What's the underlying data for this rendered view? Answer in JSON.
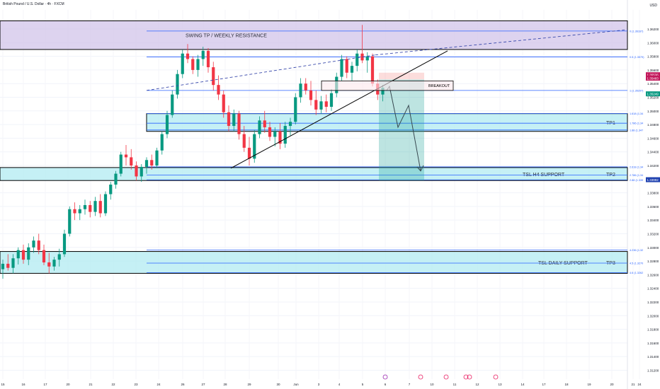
{
  "header": {
    "symbol_title": "British Pound / U.S. Dollar · 4h · FXCM",
    "currency": "USD"
  },
  "chart_data": {
    "type": "candlestick",
    "title": "British Pound / U.S. Dollar · 4h · FXCM",
    "ylim": [
      1.3107,
      1.3648
    ],
    "y_ticks": [
      "1.36200",
      "1.36000",
      "1.35800",
      "1.35600",
      "1.35400",
      "1.35200",
      "1.35000",
      "1.34800",
      "1.34600",
      "1.34400",
      "1.34200",
      "1.34000",
      "1.33800",
      "1.33600",
      "1.33400",
      "1.33200",
      "1.33000",
      "1.32800",
      "1.32600",
      "1.32400",
      "1.32200",
      "1.32000",
      "1.31800",
      "1.31600",
      "1.31400",
      "1.31200"
    ],
    "x_ticks": [
      "15",
      "16",
      "17",
      "20",
      "21",
      "22",
      "23",
      "24",
      "26",
      "27",
      "28",
      "29",
      "30",
      "Jun",
      "3",
      "4",
      "5",
      "6",
      "7",
      "10",
      "11",
      "12",
      "13",
      "14",
      "17",
      "18",
      "19",
      "20",
      "21",
      "24"
    ],
    "price_labels": [
      {
        "text": "1.35536",
        "color": "#c2185b"
      },
      {
        "text": "1.35483",
        "color": "#c2185b"
      },
      {
        "text": "1.35249",
        "color": "#089981"
      },
      {
        "text": "1.33992",
        "color": "#1e40af"
      }
    ],
    "fib_labels": [
      "0 (1.36167)",
      "0.5 (1.3579)",
      "1 (1.35297)",
      "1.618 (1.34",
      "1.786 (1.34",
      "1.88 (1.347",
      "2.618 (1.34",
      "2.786 (1.34",
      "2.88 (1.339",
      "4.236 (1.32",
      "4.5 (1.3270",
      "4.6 (1.3262"
    ],
    "zones": [
      {
        "label": "SWING TP / WEEKLY RESISTANCE",
        "tp": "",
        "color": "#d1c4e9",
        "top": 1.3632,
        "bottom": 1.359
      },
      {
        "label": "",
        "tp": "TP1",
        "color": "#b2ebf2",
        "top": 1.3496,
        "bottom": 1.347
      },
      {
        "label": "TSL H4 SUPPORT",
        "tp": "TP2",
        "color": "#b2ebf2",
        "top": 1.3417,
        "bottom": 1.3398
      },
      {
        "label": "TSL DAILY SUPPORT",
        "tp": "TP3",
        "color": "#b2ebf2",
        "top": 1.3294,
        "bottom": 1.3262
      }
    ],
    "annotations": [
      "BREAKOUT"
    ],
    "candles": [
      [
        1.3268,
        1.3282,
        1.3254,
        1.3276
      ],
      [
        1.3276,
        1.329,
        1.3266,
        1.327
      ],
      [
        1.327,
        1.329,
        1.3262,
        1.3284
      ],
      [
        1.3284,
        1.33,
        1.3275,
        1.3296
      ],
      [
        1.3296,
        1.3304,
        1.3276,
        1.3282
      ],
      [
        1.3282,
        1.3306,
        1.3274,
        1.33
      ],
      [
        1.33,
        1.3316,
        1.3292,
        1.331
      ],
      [
        1.331,
        1.332,
        1.329,
        1.3296
      ],
      [
        1.3296,
        1.3304,
        1.3274,
        1.3278
      ],
      [
        1.3278,
        1.3292,
        1.3262,
        1.3272
      ],
      [
        1.3272,
        1.3286,
        1.3266,
        1.3282
      ],
      [
        1.3282,
        1.3298,
        1.3272,
        1.329
      ],
      [
        1.329,
        1.3326,
        1.3286,
        1.332
      ],
      [
        1.332,
        1.336,
        1.3316,
        1.3356
      ],
      [
        1.3356,
        1.3366,
        1.334,
        1.335
      ],
      [
        1.335,
        1.3362,
        1.334,
        1.3356
      ],
      [
        1.3356,
        1.337,
        1.3348,
        1.3362
      ],
      [
        1.3362,
        1.3368,
        1.3344,
        1.3352
      ],
      [
        1.3352,
        1.3374,
        1.3346,
        1.3368
      ],
      [
        1.3368,
        1.3378,
        1.3344,
        1.335
      ],
      [
        1.335,
        1.3382,
        1.3346,
        1.3378
      ],
      [
        1.3378,
        1.3396,
        1.337,
        1.3392
      ],
      [
        1.3392,
        1.3412,
        1.3386,
        1.3408
      ],
      [
        1.3408,
        1.344,
        1.3404,
        1.3436
      ],
      [
        1.3436,
        1.345,
        1.342,
        1.3432
      ],
      [
        1.3432,
        1.3444,
        1.3414,
        1.342
      ],
      [
        1.342,
        1.3426,
        1.3398,
        1.3404
      ],
      [
        1.3404,
        1.3422,
        1.3396,
        1.3418
      ],
      [
        1.3418,
        1.3432,
        1.3408,
        1.3428
      ],
      [
        1.3428,
        1.3436,
        1.3414,
        1.342
      ],
      [
        1.342,
        1.3446,
        1.3416,
        1.3442
      ],
      [
        1.3442,
        1.347,
        1.3436,
        1.3466
      ],
      [
        1.3466,
        1.35,
        1.346,
        1.3494
      ],
      [
        1.3494,
        1.353,
        1.349,
        1.3524
      ],
      [
        1.3524,
        1.356,
        1.3518,
        1.3554
      ],
      [
        1.3554,
        1.359,
        1.3548,
        1.3584
      ],
      [
        1.3584,
        1.3598,
        1.357,
        1.3576
      ],
      [
        1.3576,
        1.358,
        1.3554,
        1.356
      ],
      [
        1.356,
        1.3582,
        1.355,
        1.3576
      ],
      [
        1.3576,
        1.3594,
        1.3566,
        1.3588
      ],
      [
        1.3588,
        1.3592,
        1.3556,
        1.3564
      ],
      [
        1.3564,
        1.3572,
        1.353,
        1.3538
      ],
      [
        1.3538,
        1.3552,
        1.3516,
        1.3524
      ],
      [
        1.3524,
        1.353,
        1.349,
        1.3498
      ],
      [
        1.3498,
        1.3508,
        1.347,
        1.3478
      ],
      [
        1.3478,
        1.3502,
        1.347,
        1.3496
      ],
      [
        1.3496,
        1.35,
        1.3458,
        1.3466
      ],
      [
        1.3466,
        1.3478,
        1.344,
        1.3446
      ],
      [
        1.3446,
        1.3462,
        1.342,
        1.343
      ],
      [
        1.343,
        1.3472,
        1.3424,
        1.3466
      ],
      [
        1.3466,
        1.3492,
        1.346,
        1.3486
      ],
      [
        1.3486,
        1.35,
        1.3468,
        1.3476
      ],
      [
        1.3476,
        1.3484,
        1.3456,
        1.3462
      ],
      [
        1.3462,
        1.3476,
        1.3448,
        1.347
      ],
      [
        1.347,
        1.3482,
        1.3444,
        1.3452
      ],
      [
        1.3452,
        1.3484,
        1.3446,
        1.3478
      ],
      [
        1.3478,
        1.349,
        1.3464,
        1.3484
      ],
      [
        1.3484,
        1.3526,
        1.348,
        1.352
      ],
      [
        1.352,
        1.3548,
        1.3512,
        1.354
      ],
      [
        1.354,
        1.3548,
        1.3524,
        1.353
      ],
      [
        1.353,
        1.3544,
        1.3508,
        1.3516
      ],
      [
        1.3516,
        1.353,
        1.3494,
        1.3502
      ],
      [
        1.3502,
        1.3522,
        1.3496,
        1.3514
      ],
      [
        1.3514,
        1.3524,
        1.3498,
        1.3506
      ],
      [
        1.3506,
        1.3532,
        1.35,
        1.3526
      ],
      [
        1.3526,
        1.3556,
        1.352,
        1.355
      ],
      [
        1.355,
        1.3582,
        1.3544,
        1.3576
      ],
      [
        1.3576,
        1.358,
        1.3548,
        1.3556
      ],
      [
        1.3556,
        1.3572,
        1.3544,
        1.3566
      ],
      [
        1.3566,
        1.359,
        1.3558,
        1.3584
      ],
      [
        1.3584,
        1.3626,
        1.357,
        1.3574
      ],
      [
        1.3574,
        1.3586,
        1.3556,
        1.358
      ],
      [
        1.358,
        1.3584,
        1.3536,
        1.354
      ],
      [
        1.354,
        1.3546,
        1.3516,
        1.3524
      ],
      [
        1.3524,
        1.3538,
        1.3514,
        1.3534
      ]
    ]
  }
}
